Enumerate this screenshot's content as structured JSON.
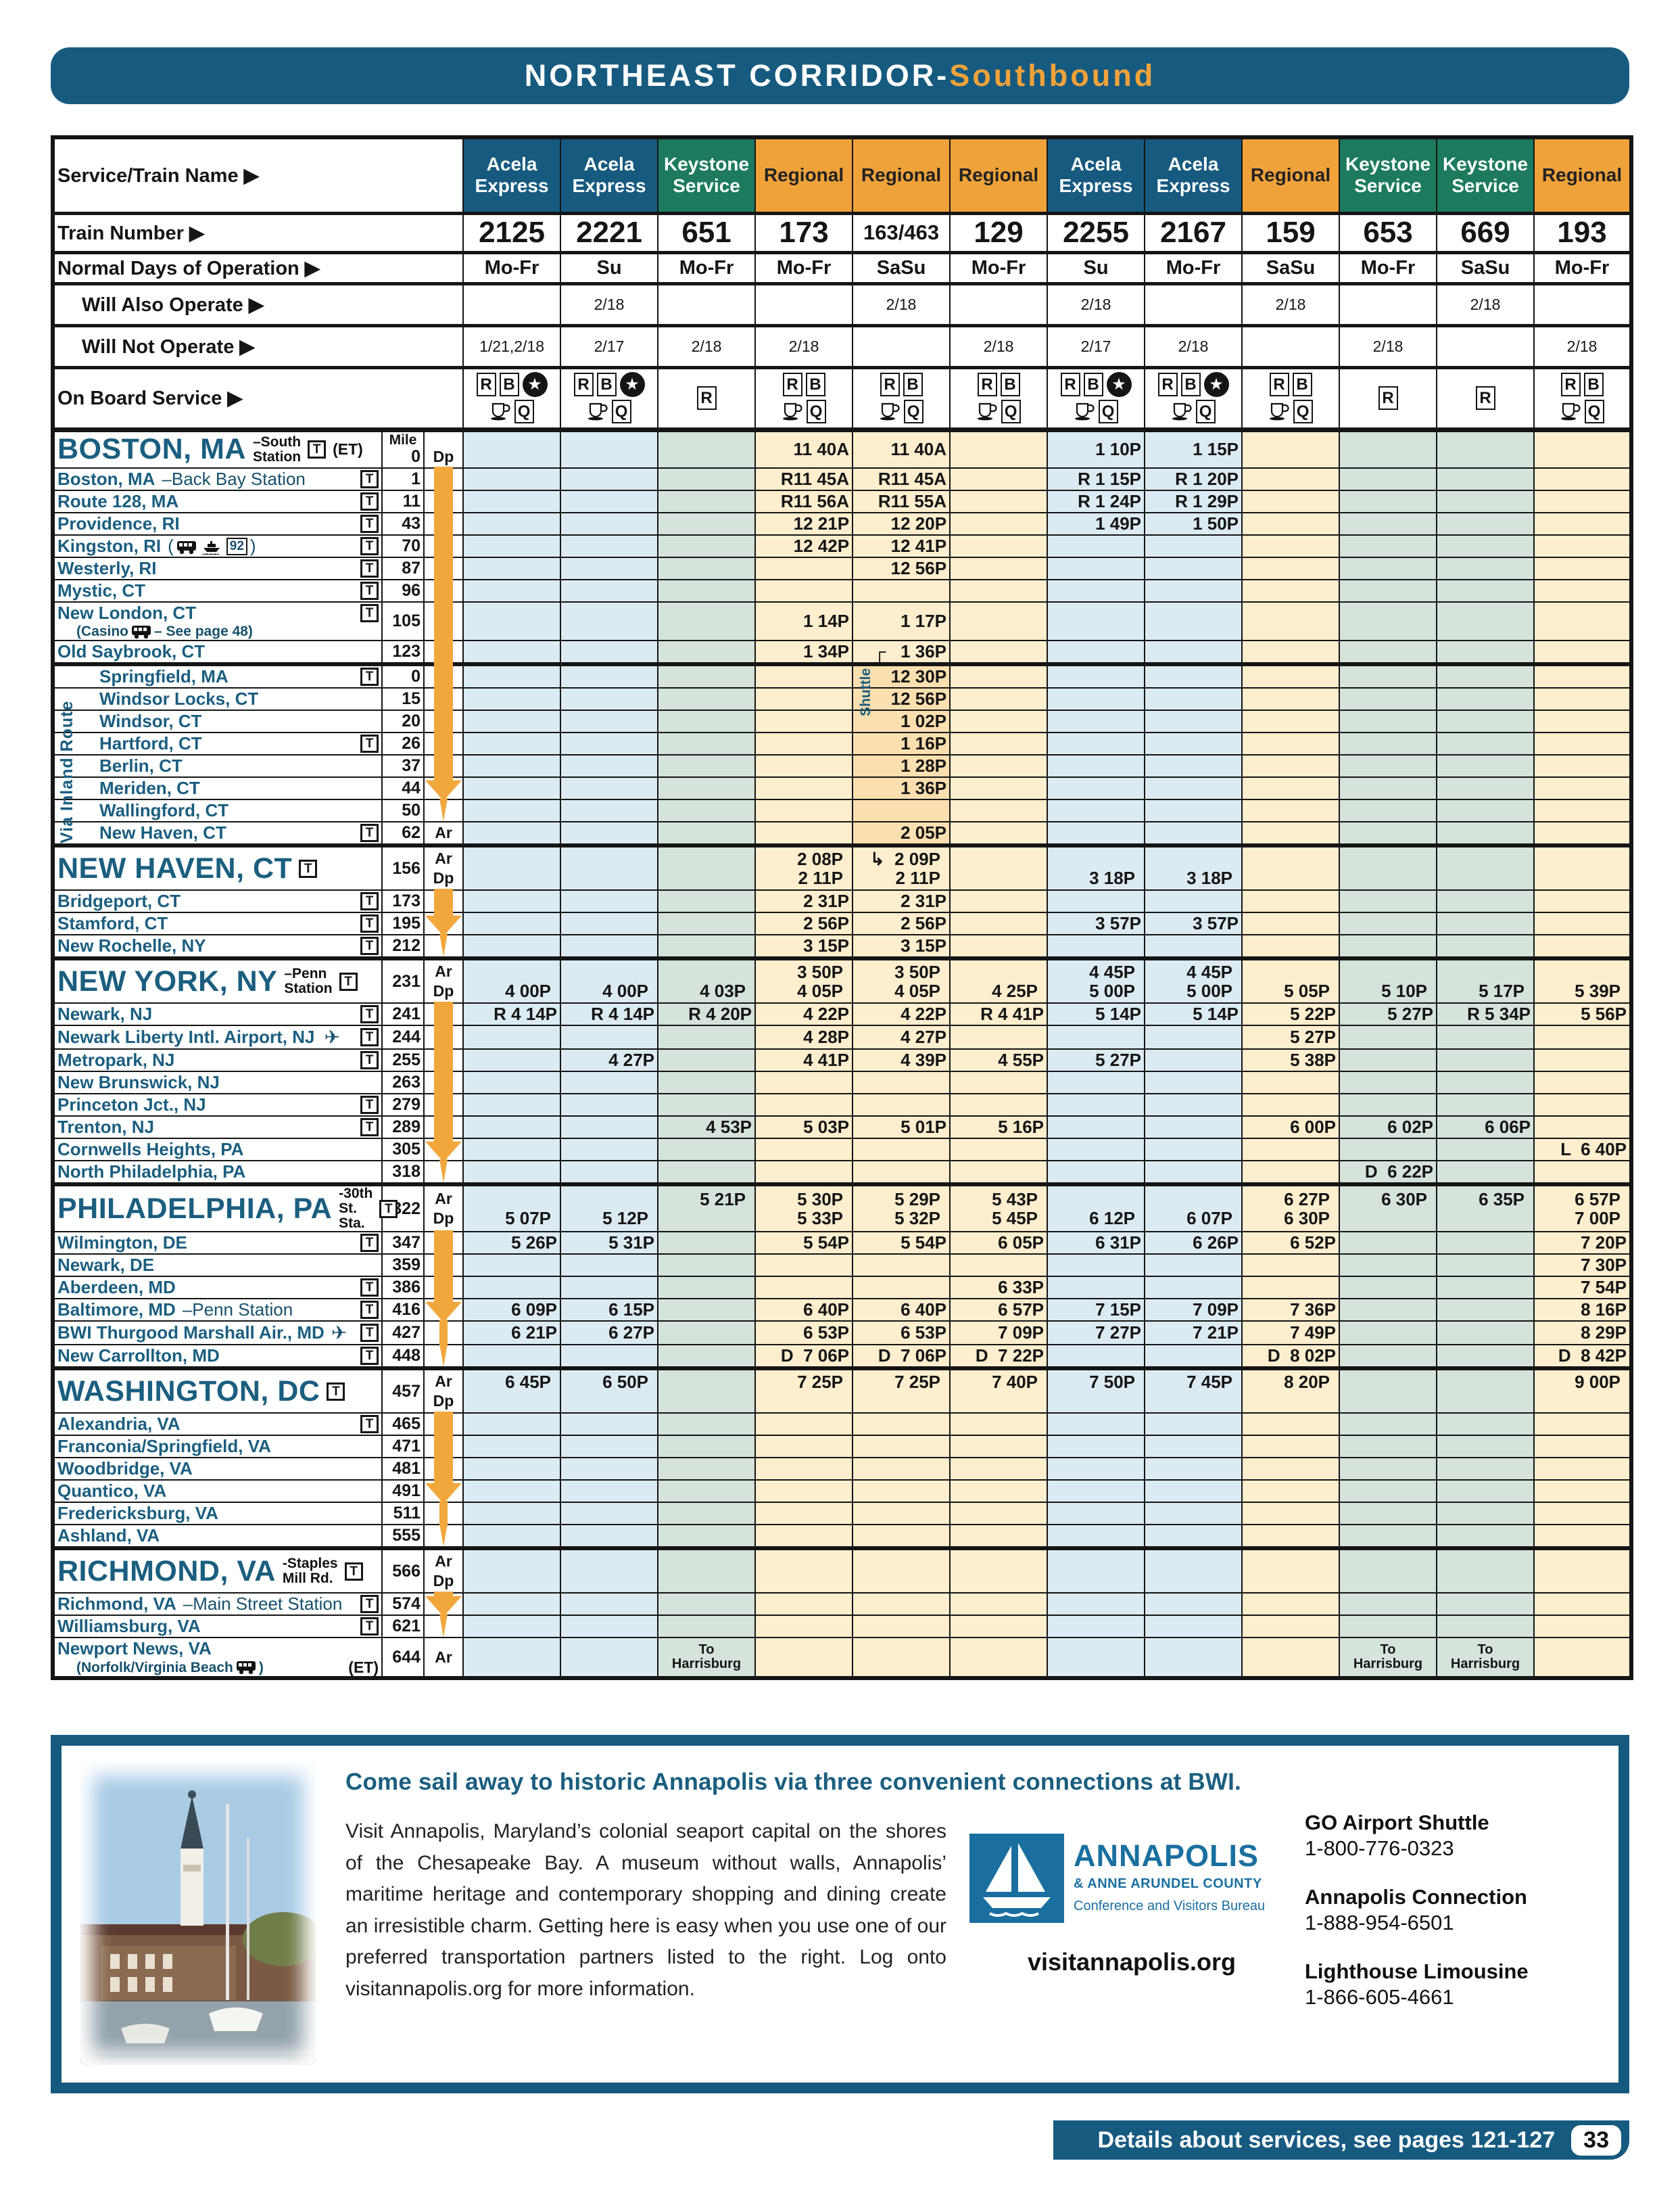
{
  "title": {
    "main": "NORTHEAST CORRIDOR-",
    "accent": "Southbound"
  },
  "labels": {
    "service": "Service/Train Name ▶",
    "number": "Train Number ▶",
    "days": "Normal Days of Operation ▶",
    "also": "Will Also Operate ▶",
    "notop": "Will Not Operate ▶",
    "onboard": "On Board Service ▶",
    "mile": "Mile",
    "ar": "Ar",
    "dp": "Dp",
    "t": "T",
    "via_inland": "Via Inland Route",
    "shuttle": "Shuttle"
  },
  "colors": {
    "header_blue": "#175a80",
    "keystone_green": "#1d7a5f",
    "regional_orange": "#f0a23a",
    "arrow_orange": "#f2a73d",
    "acela_body": "#dcebf2",
    "keystone_body": "#d5e3da",
    "regional_body": "#fdeecd",
    "shuttle_body": "#fbdfae",
    "station_teal": "#1b5e80"
  },
  "columns": [
    {
      "service": "Acela\nExpress",
      "type": "acela",
      "num": "2125",
      "days": "Mo-Fr",
      "also": "",
      "notop": "1/21,2/18",
      "ob": [
        [
          "R",
          "B",
          "star"
        ],
        [
          "cup",
          "Q"
        ]
      ]
    },
    {
      "service": "Acela\nExpress",
      "type": "acela",
      "num": "2221",
      "days": "Su",
      "also": "2/18",
      "notop": "2/17",
      "ob": [
        [
          "R",
          "B",
          "star"
        ],
        [
          "cup",
          "Q"
        ]
      ]
    },
    {
      "service": "Keystone\nService",
      "type": "keystone",
      "num": "651",
      "days": "Mo-Fr",
      "also": "",
      "notop": "2/18",
      "ob": [
        [
          "R"
        ],
        []
      ]
    },
    {
      "service": "Regional",
      "type": "regional",
      "num": "173",
      "days": "Mo-Fr",
      "also": "",
      "notop": "2/18",
      "ob": [
        [
          "R",
          "B"
        ],
        [
          "cup",
          "Q"
        ]
      ]
    },
    {
      "service": "Regional",
      "type": "regional",
      "num": "163/463",
      "days": "SaSu",
      "also": "2/18",
      "notop": "",
      "ob": [
        [
          "R",
          "B"
        ],
        [
          "cup",
          "Q"
        ]
      ]
    },
    {
      "service": "Regional",
      "type": "regional",
      "num": "129",
      "days": "Mo-Fr",
      "also": "",
      "notop": "2/18",
      "ob": [
        [
          "R",
          "B"
        ],
        [
          "cup",
          "Q"
        ]
      ]
    },
    {
      "service": "Acela\nExpress",
      "type": "acela",
      "num": "2255",
      "days": "Su",
      "also": "2/18",
      "notop": "2/17",
      "ob": [
        [
          "R",
          "B",
          "star"
        ],
        [
          "cup",
          "Q"
        ]
      ]
    },
    {
      "service": "Acela\nExpress",
      "type": "acela",
      "num": "2167",
      "days": "Mo-Fr",
      "also": "",
      "notop": "2/18",
      "ob": [
        [
          "R",
          "B",
          "star"
        ],
        [
          "cup",
          "Q"
        ]
      ]
    },
    {
      "service": "Regional",
      "type": "regional",
      "num": "159",
      "days": "SaSu",
      "also": "2/18",
      "notop": "",
      "ob": [
        [
          "R",
          "B"
        ],
        [
          "cup",
          "Q"
        ]
      ]
    },
    {
      "service": "Keystone\nService",
      "type": "keystone",
      "num": "653",
      "days": "Mo-Fr",
      "also": "",
      "notop": "2/18",
      "ob": [
        [
          "R"
        ],
        []
      ]
    },
    {
      "service": "Keystone\nService",
      "type": "keystone",
      "num": "669",
      "days": "SaSu",
      "also": "2/18",
      "notop": "",
      "ob": [
        [
          "R"
        ],
        []
      ]
    },
    {
      "service": "Regional",
      "type": "regional",
      "num": "193",
      "days": "Mo-Fr",
      "also": "",
      "notop": "2/18",
      "ob": [
        [
          "R",
          "B"
        ],
        [
          "cup",
          "Q"
        ]
      ]
    }
  ],
  "rows": [
    {
      "kind": "sec",
      "h": "b",
      "name": "BOSTON, MA",
      "sfx": [
        "–South",
        "Station"
      ],
      "t": true,
      "et": "(ET)",
      "mile": "0",
      "mileHead": true,
      "ardp": "Dp",
      "times": [
        "",
        "",
        "",
        "11 40A",
        "11 40A",
        "",
        "1 10P",
        "1 15P",
        "",
        "",
        "",
        ""
      ]
    },
    {
      "name": "Boston, MA",
      "rest": "–Back Bay Station",
      "t": true,
      "mile": "1",
      "arrow": "bar",
      "times": [
        "",
        "",
        "",
        "R11 45A",
        "R11 45A",
        "",
        "R 1 15P",
        "R 1 20P",
        "",
        "",
        "",
        ""
      ]
    },
    {
      "name": "Route 128, MA",
      "t": true,
      "mile": "11",
      "arrow": "bar",
      "times": [
        "",
        "",
        "",
        "R11 56A",
        "R11 55A",
        "",
        "R 1 24P",
        "R 1 29P",
        "",
        "",
        "",
        ""
      ]
    },
    {
      "name": "Providence, RI",
      "t": true,
      "mile": "43",
      "arrow": "bar",
      "times": [
        "",
        "",
        "",
        "12 21P",
        "12 20P",
        "",
        "1 49P",
        "1 50P",
        "",
        "",
        "",
        ""
      ]
    },
    {
      "name": "Kingston, RI",
      "rest": " ({bus} {ferry} {b92})",
      "t": true,
      "mile": "70",
      "arrow": "bar",
      "times": [
        "",
        "",
        "",
        "12 42P",
        "12 41P",
        "",
        "",
        "",
        "",
        "",
        "",
        ""
      ]
    },
    {
      "name": "Westerly, RI",
      "t": true,
      "mile": "87",
      "arrow": "bar",
      "times": [
        "",
        "",
        "",
        "",
        "12 56P",
        "",
        "",
        "",
        "",
        "",
        "",
        ""
      ]
    },
    {
      "name": "Mystic, CT",
      "t": true,
      "mile": "96",
      "arrow": "bar"
    },
    {
      "name": "New London, CT",
      "label2": "(Casino {bus} – See page 48)",
      "t": true,
      "mile": "105",
      "arrow": "bar",
      "h": "2",
      "times": [
        "",
        "",
        "",
        "1 14P",
        "1 17P",
        "",
        "",
        "",
        "",
        "",
        "",
        ""
      ]
    },
    {
      "name": "Old Saybrook, CT",
      "mile": "123",
      "arrow": "bar",
      "times": [
        "",
        "",
        "",
        "1 34P",
        "┌   1 36P",
        "",
        "",
        "",
        "",
        "",
        "",
        ""
      ]
    },
    {
      "name": "Springfield, MA",
      "t": true,
      "mile": "0",
      "indent": true,
      "arrow": "bar",
      "c5dark": true,
      "secline": true,
      "vinland": true,
      "vshuttle": true,
      "times": [
        "",
        "",
        "",
        "",
        "12 30P",
        "",
        "",
        "",
        "",
        "",
        "",
        ""
      ]
    },
    {
      "name": "Windsor Locks, CT",
      "mile": "15",
      "indent": true,
      "arrow": "bar",
      "c5dark": true,
      "times": [
        "",
        "",
        "",
        "",
        "12 56P",
        "",
        "",
        "",
        "",
        "",
        "",
        ""
      ]
    },
    {
      "name": "Windsor, CT",
      "mile": "20",
      "indent": true,
      "arrow": "bar",
      "c5dark": true,
      "times": [
        "",
        "",
        "",
        "",
        "1 02P",
        "",
        "",
        "",
        "",
        "",
        "",
        ""
      ]
    },
    {
      "name": "Hartford, CT",
      "t": true,
      "mile": "26",
      "indent": true,
      "arrow": "bar",
      "c5dark": true,
      "times": [
        "",
        "",
        "",
        "",
        "1 16P",
        "",
        "",
        "",
        "",
        "",
        "",
        ""
      ]
    },
    {
      "name": "Berlin, CT",
      "mile": "37",
      "indent": true,
      "arrow": "bar",
      "c5dark": true,
      "times": [
        "",
        "",
        "",
        "",
        "1 28P",
        "",
        "",
        "",
        "",
        "",
        "",
        ""
      ]
    },
    {
      "name": "Meriden, CT",
      "mile": "44",
      "indent": true,
      "arrow": "head",
      "c5dark": true,
      "times": [
        "",
        "",
        "",
        "",
        "1 36P",
        "",
        "",
        "",
        "",
        "",
        "",
        ""
      ]
    },
    {
      "name": "Wallingford, CT",
      "mile": "50",
      "indent": true,
      "arrow": "tip",
      "c5dark": true
    },
    {
      "name": "New Haven, CT",
      "t": true,
      "mile": "62",
      "indent": true,
      "ardp": "Ar",
      "c5dark": true,
      "times": [
        "",
        "",
        "",
        "",
        "2 05P",
        "",
        "",
        "",
        "",
        "",
        "",
        ""
      ]
    },
    {
      "kind": "sec",
      "h": "s",
      "name": "NEW HAVEN, CT",
      "t": true,
      "mile": "156",
      "ardp": "ArDp",
      "secline": true,
      "ar": [
        "",
        "",
        "",
        "2 08P",
        "↳  2 09P",
        "",
        "",
        "",
        "",
        "",
        "",
        ""
      ],
      "dp": [
        "",
        "",
        "",
        "2 11P",
        "2 11P",
        "",
        "3 18P",
        "3 18P",
        "",
        "",
        "",
        ""
      ]
    },
    {
      "name": "Bridgeport, CT",
      "t": true,
      "mile": "173",
      "arrow": "bar",
      "times": [
        "",
        "",
        "",
        "2 31P",
        "2 31P",
        "",
        "",
        "",
        "",
        "",
        "",
        ""
      ]
    },
    {
      "name": "Stamford, CT",
      "t": true,
      "mile": "195",
      "arrow": "head",
      "times": [
        "",
        "",
        "",
        "2 56P",
        "2 56P",
        "",
        "3 57P",
        "3 57P",
        "",
        "",
        "",
        ""
      ]
    },
    {
      "name": "New Rochelle, NY",
      "t": true,
      "mile": "212",
      "arrow": "tip",
      "times": [
        "",
        "",
        "",
        "3 15P",
        "3 15P",
        "",
        "",
        "",
        "",
        "",
        "",
        ""
      ]
    },
    {
      "kind": "sec",
      "h": "s",
      "name": "NEW YORK, NY",
      "sfx": [
        "–Penn",
        "Station"
      ],
      "t": true,
      "mile": "231",
      "ardp": "ArDp",
      "secline": true,
      "ar": [
        "",
        "",
        "",
        "3 50P",
        "3 50P",
        "",
        "4 45P",
        "4 45P",
        "",
        "",
        "",
        ""
      ],
      "dp": [
        "4 00P",
        "4 00P",
        "4 03P",
        "4 05P",
        "4 05P",
        "4 25P",
        "5 00P",
        "5 00P",
        "5 05P",
        "5 10P",
        "5 17P",
        "5 39P"
      ]
    },
    {
      "name": "Newark, NJ",
      "t": true,
      "mile": "241",
      "arrow": "bar",
      "times": [
        "R 4 14P",
        "R 4 14P",
        "R 4 20P",
        "4 22P",
        "4 22P",
        "R 4 41P",
        "5 14P",
        "5 14P",
        "5 22P",
        "5 27P",
        "R 5 34P",
        "5 56P"
      ]
    },
    {
      "name": "Newark Liberty Intl. Airport, NJ",
      "rest": " {plane}",
      "t": true,
      "mile": "244",
      "arrow": "bar",
      "times": [
        "",
        "",
        "",
        "4 28P",
        "4 27P",
        "",
        "",
        "",
        "5 27P",
        "",
        "",
        ""
      ]
    },
    {
      "name": "Metropark, NJ",
      "t": true,
      "mile": "255",
      "arrow": "bar",
      "times": [
        "",
        "4 27P",
        "",
        "4 41P",
        "4 39P",
        "4 55P",
        "5 27P",
        "",
        "5 38P",
        "",
        "",
        ""
      ]
    },
    {
      "name": "New Brunswick, NJ",
      "mile": "263",
      "arrow": "bar"
    },
    {
      "name": "Princeton Jct., NJ",
      "t": true,
      "mile": "279",
      "arrow": "bar"
    },
    {
      "name": "Trenton, NJ",
      "t": true,
      "mile": "289",
      "arrow": "bar",
      "times": [
        "",
        "",
        "4 53P",
        "5 03P",
        "5 01P",
        "5 16P",
        "",
        "",
        "6 00P",
        "6 02P",
        "6 06P",
        ""
      ]
    },
    {
      "name": "Cornwells Heights, PA",
      "mile": "305",
      "arrow": "head",
      "times": [
        "",
        "",
        "",
        "",
        "",
        "",
        "",
        "",
        "",
        "",
        "",
        "L  6 40P"
      ]
    },
    {
      "name": "North Philadelphia, PA",
      "mile": "318",
      "arrow": "tip",
      "times": [
        "",
        "",
        "",
        "",
        "",
        "",
        "",
        "",
        "",
        "D  6 22P",
        "",
        ""
      ]
    },
    {
      "kind": "sec",
      "h": "s",
      "name": "PHILADELPHIA, PA",
      "sfx": [
        "-30th St.",
        "Sta."
      ],
      "t": true,
      "mile": "322",
      "ardp": "ArDp",
      "secline": true,
      "ar": [
        "",
        "",
        "5 21P",
        "5 30P",
        "5 29P",
        "5 43P",
        "",
        "",
        "6 27P",
        "6 30P",
        "6 35P",
        "6 57P"
      ],
      "dp": [
        "5 07P",
        "5 12P",
        "",
        "5 33P",
        "5 32P",
        "5 45P",
        "6 12P",
        "6 07P",
        "6 30P",
        "",
        "",
        "7 00P"
      ]
    },
    {
      "name": "Wilmington, DE",
      "t": true,
      "mile": "347",
      "arrow": "bar",
      "times": [
        "5 26P",
        "5 31P",
        "",
        "5 54P",
        "5 54P",
        "6 05P",
        "6 31P",
        "6 26P",
        "6 52P",
        "",
        "",
        "7 20P"
      ]
    },
    {
      "name": "Newark, DE",
      "mile": "359",
      "arrow": "bar",
      "times": [
        "",
        "",
        "",
        "",
        "",
        "",
        "",
        "",
        "",
        "",
        "",
        "7 30P"
      ]
    },
    {
      "name": "Aberdeen, MD",
      "t": true,
      "mile": "386",
      "arrow": "bar",
      "times": [
        "",
        "",
        "",
        "",
        "",
        "6 33P",
        "",
        "",
        "",
        "",
        "",
        "7 54P"
      ]
    },
    {
      "name": "Baltimore, MD",
      "rest": "–Penn Station",
      "t": true,
      "mile": "416",
      "arrow": "head",
      "times": [
        "6 09P",
        "6 15P",
        "",
        "6 40P",
        "6 40P",
        "6 57P",
        "7 15P",
        "7 09P",
        "7 36P",
        "",
        "",
        "8 16P"
      ]
    },
    {
      "name": "BWI Thurgood Marshall Air., MD",
      "rest": "{plane}",
      "t": true,
      "mile": "427",
      "arrow": "thin",
      "times": [
        "6 21P",
        "6 27P",
        "",
        "6 53P",
        "6 53P",
        "7 09P",
        "7 27P",
        "7 21P",
        "7 49P",
        "",
        "",
        "8 29P"
      ]
    },
    {
      "name": "New Carrollton, MD",
      "t": true,
      "mile": "448",
      "arrow": "tip",
      "times": [
        "",
        "",
        "",
        "D  7 06P",
        "D  7 06P",
        "D  7 22P",
        "",
        "",
        "D  8 02P",
        "",
        "",
        "D  8 42P"
      ]
    },
    {
      "kind": "sec",
      "h": "s",
      "name": "WASHINGTON, DC",
      "t": true,
      "mile": "457",
      "ardp": "ArDp",
      "secline": true,
      "ar": [
        "6 45P",
        "6 50P",
        "",
        "7 25P",
        "7 25P",
        "7 40P",
        "7 50P",
        "7 45P",
        "8 20P",
        "",
        "",
        "9 00P"
      ],
      "dp": [
        "",
        "",
        "",
        "",
        "",
        "",
        "",
        "",
        "",
        "",
        "",
        ""
      ]
    },
    {
      "name": "Alexandria, VA",
      "t": true,
      "mile": "465",
      "arrow": "bar"
    },
    {
      "name": "Franconia/Springfield, VA",
      "mile": "471",
      "arrow": "bar"
    },
    {
      "name": "Woodbridge, VA",
      "mile": "481",
      "arrow": "bar"
    },
    {
      "name": "Quantico, VA",
      "mile": "491",
      "arrow": "head"
    },
    {
      "name": "Fredericksburg, VA",
      "mile": "511",
      "arrow": "thin"
    },
    {
      "name": "Ashland, VA",
      "mile": "555",
      "arrow": "tip"
    },
    {
      "kind": "sec",
      "h": "s",
      "name": "RICHMOND, VA",
      "sfx": [
        "-Staples",
        "Mill Rd."
      ],
      "t": true,
      "mile": "566",
      "ardp": "ArDp",
      "secline": true,
      "ar": [
        "",
        "",
        "",
        "",
        "",
        "",
        "",
        "",
        "",
        "",
        "",
        ""
      ],
      "dp": [
        "",
        "",
        "",
        "",
        "",
        "",
        "",
        "",
        "",
        "",
        "",
        ""
      ]
    },
    {
      "name": "Richmond, VA",
      "rest": "–Main Street Station",
      "t": true,
      "mile": "574",
      "arrow": "head"
    },
    {
      "name": "Williamsburg, VA",
      "t": true,
      "mile": "621",
      "arrow": "tip"
    },
    {
      "name": "Newport News, VA",
      "label2": "(Norfolk/Virginia Beach {bus})",
      "label2r": "(ET)",
      "mile": "644",
      "ardp": "Ar",
      "h": "2",
      "times": [
        "",
        "",
        "To\nHarrisburg",
        "",
        "",
        "",
        "",
        "",
        "",
        "To\nHarrisburg",
        "To\nHarrisburg",
        ""
      ]
    }
  ],
  "ad": {
    "headline": "Come sail away to historic Annapolis via three convenient connections at BWI.",
    "body": "Visit Annapolis, Maryland’s colonial seaport capital on the shores of the Chesapeake Bay. A museum without walls, Annapolis’ maritime heritage and contemporary shopping and dining create an irresistible charm. Getting here is easy when you use one of our preferred transportation partners listed to the right. Log onto visitannapolis.org for more information.",
    "logo": {
      "name": "ANNAPOLIS",
      "sub1": "& ANNE ARUNDEL COUNTY",
      "sub2": "Conference and Visitors Bureau"
    },
    "website": "visitannapolis.org",
    "partners": [
      {
        "name": "GO Airport Shuttle",
        "phone": "1-800-776-0323"
      },
      {
        "name": "Annapolis Connection",
        "phone": "1-888-954-6501"
      },
      {
        "name": "Lighthouse Limousine",
        "phone": "1-866-605-4661"
      }
    ]
  },
  "footer": {
    "text": "Details about services, see pages 121-127",
    "page": "33"
  }
}
